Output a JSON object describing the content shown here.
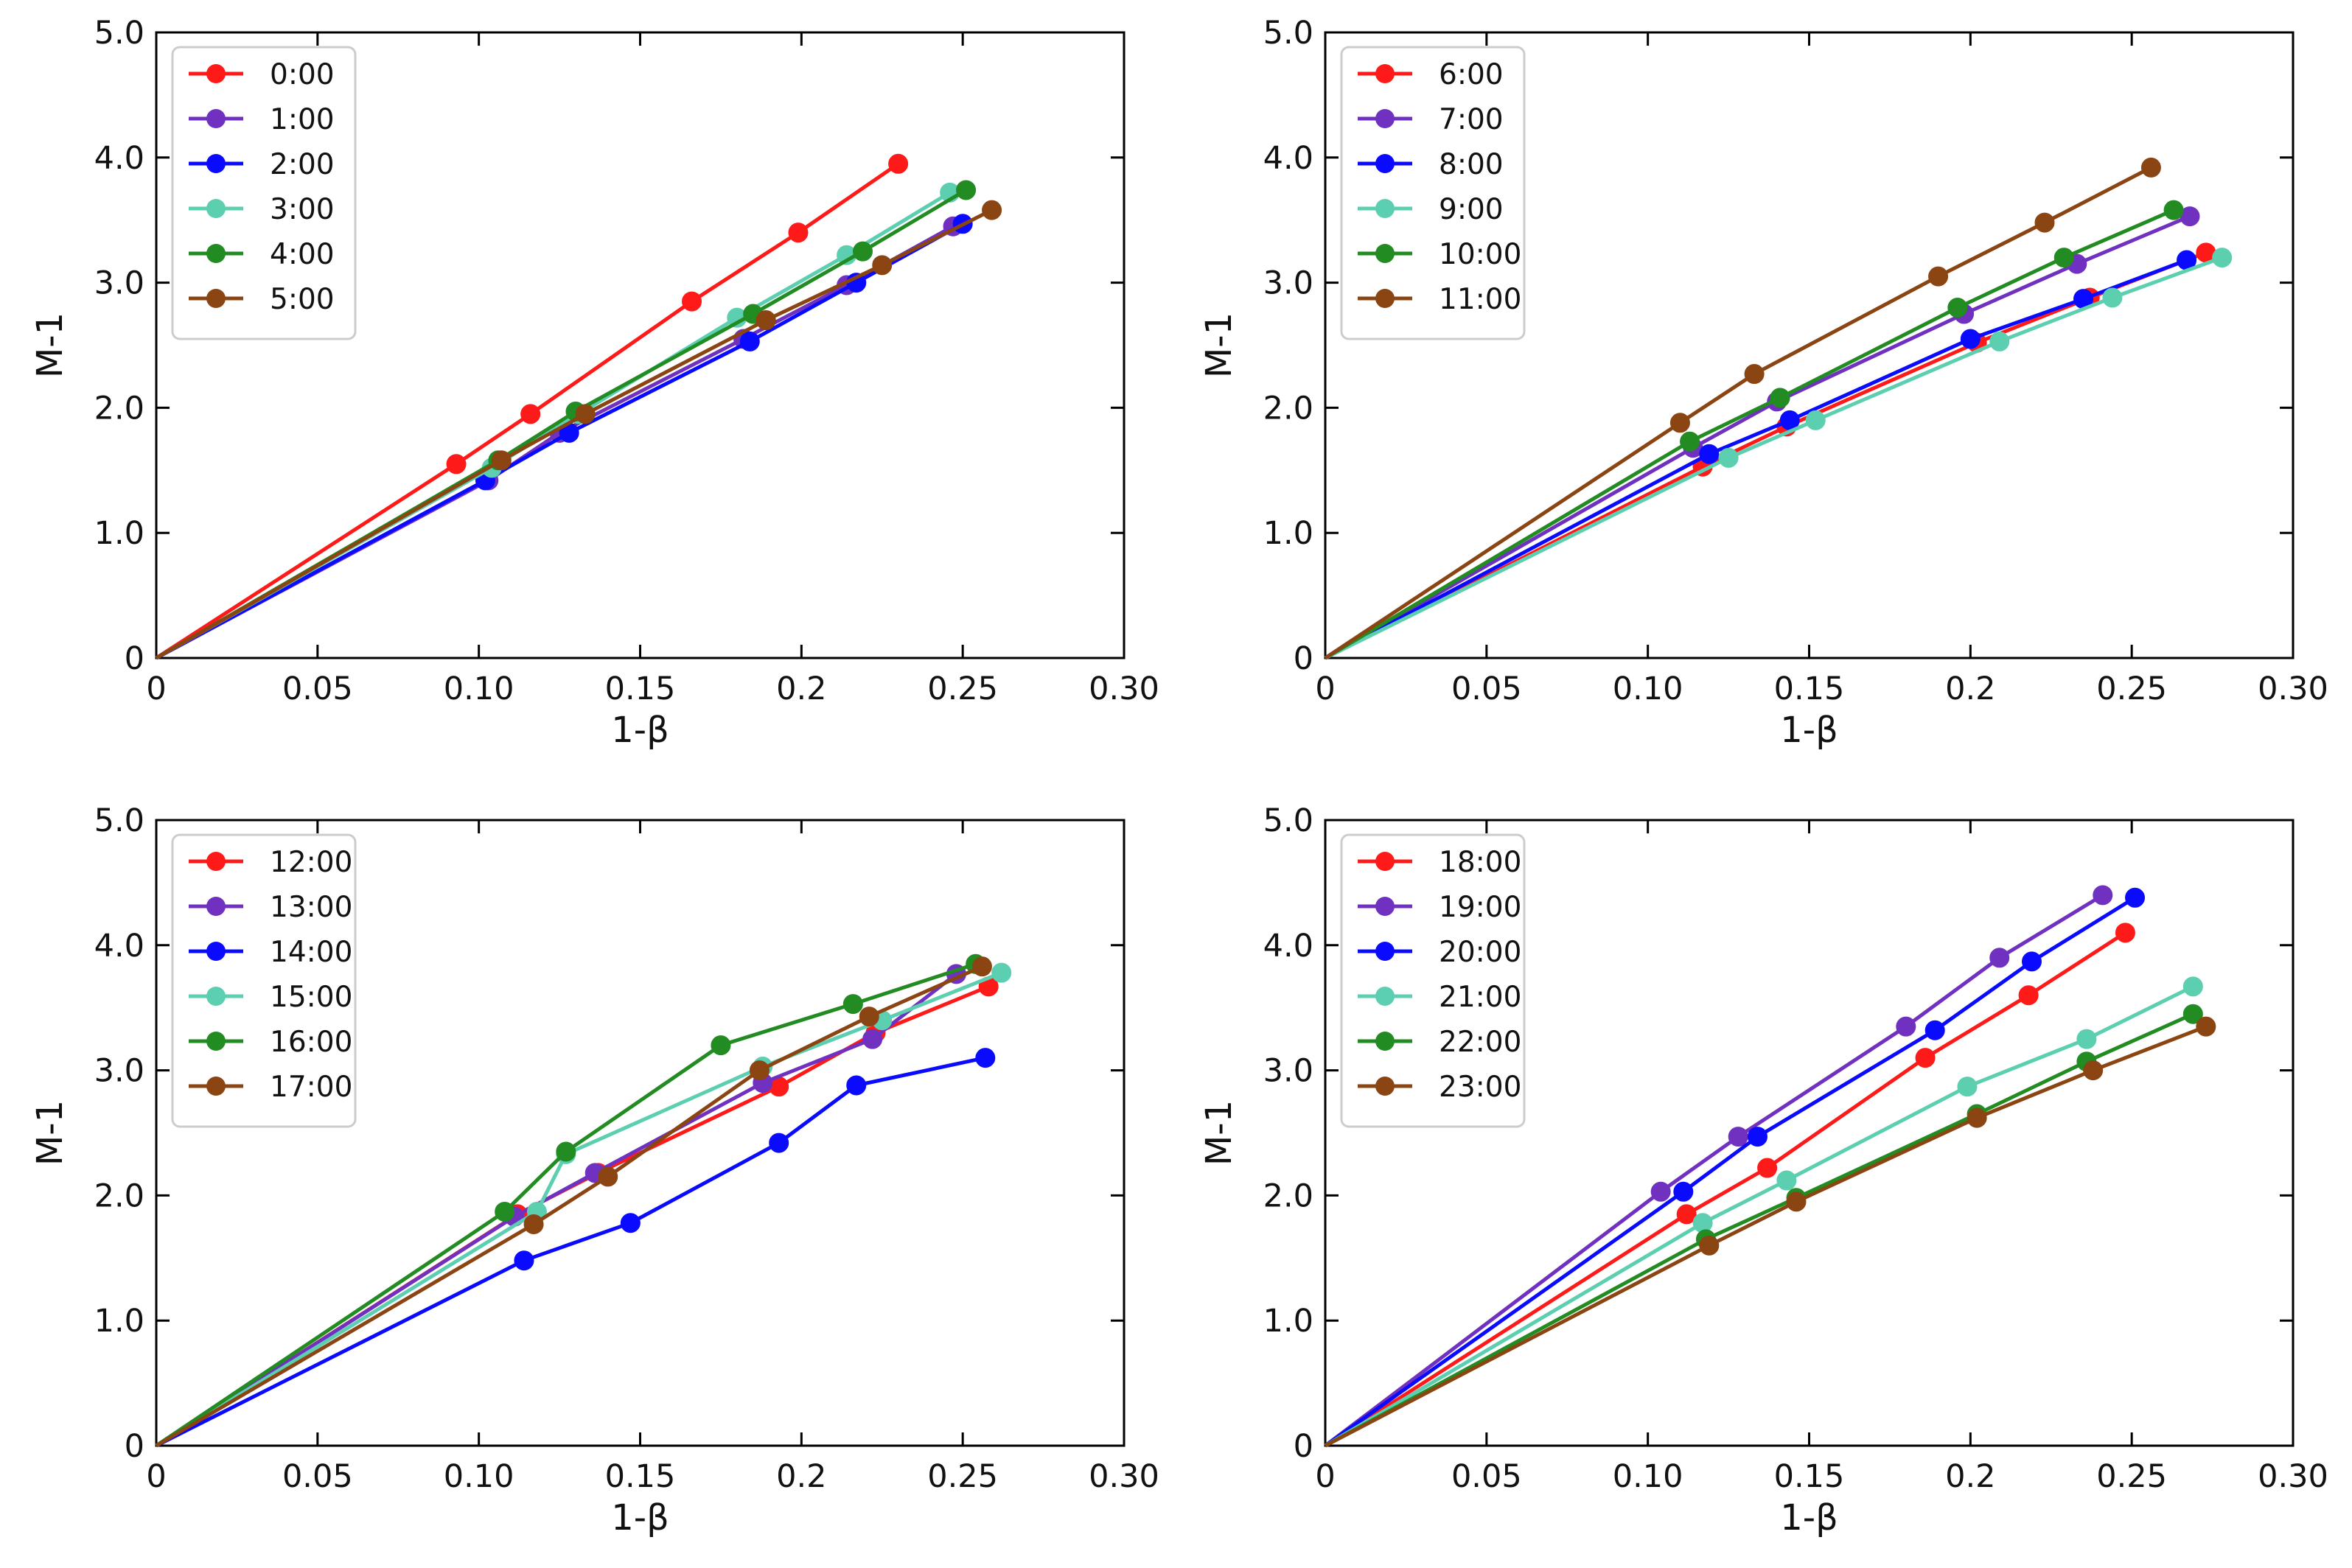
{
  "colors": [
    "#ff1a1a",
    "#7030c0",
    "#0a0aff",
    "#5ccfb0",
    "#228b22",
    "#8b4513"
  ],
  "chart_data": [
    {
      "type": "line",
      "title": "",
      "xlabel": "1-β",
      "ylabel": "M-1",
      "xlim": [
        0,
        0.3
      ],
      "ylim": [
        0,
        5.0
      ],
      "xticks": [
        0,
        0.05,
        0.1,
        0.15,
        0.2,
        0.25,
        0.3
      ],
      "xtick_labels": [
        "0",
        "0.05",
        "0.10",
        "0.15",
        "0.2",
        "0.25",
        "0.30"
      ],
      "yticks": [
        0,
        1.0,
        2.0,
        3.0,
        4.0,
        5.0
      ],
      "ytick_labels": [
        "0",
        "1.0",
        "2.0",
        "3.0",
        "4.0",
        "5.0"
      ],
      "legend_position": "top-left",
      "series": [
        {
          "name": "0:00",
          "x": [
            0,
            0.093,
            0.116,
            0.166,
            0.199,
            0.23
          ],
          "y": [
            0,
            1.55,
            1.95,
            2.85,
            3.4,
            3.95
          ]
        },
        {
          "name": "1:00",
          "x": [
            0,
            0.103,
            0.125,
            0.182,
            0.214,
            0.247
          ],
          "y": [
            0,
            1.42,
            1.8,
            2.55,
            2.98,
            3.45
          ]
        },
        {
          "name": "2:00",
          "x": [
            0,
            0.102,
            0.128,
            0.184,
            0.217,
            0.25
          ],
          "y": [
            0,
            1.42,
            1.8,
            2.53,
            3.0,
            3.47
          ]
        },
        {
          "name": "3:00",
          "x": [
            0,
            0.104,
            0.131,
            0.18,
            0.214,
            0.246
          ],
          "y": [
            0,
            1.52,
            1.95,
            2.72,
            3.22,
            3.72
          ]
        },
        {
          "name": "4:00",
          "x": [
            0,
            0.106,
            0.13,
            0.185,
            0.219,
            0.251
          ],
          "y": [
            0,
            1.58,
            1.97,
            2.75,
            3.25,
            3.74
          ]
        },
        {
          "name": "5:00",
          "x": [
            0,
            0.107,
            0.133,
            0.189,
            0.225,
            0.259
          ],
          "y": [
            0,
            1.58,
            1.95,
            2.7,
            3.14,
            3.58
          ]
        }
      ]
    },
    {
      "type": "line",
      "title": "",
      "xlabel": "1-β",
      "ylabel": "M-1",
      "xlim": [
        0,
        0.3
      ],
      "ylim": [
        0,
        5.0
      ],
      "xticks": [
        0,
        0.05,
        0.1,
        0.15,
        0.2,
        0.25,
        0.3
      ],
      "xtick_labels": [
        "0",
        "0.05",
        "0.10",
        "0.15",
        "0.2",
        "0.25",
        "0.30"
      ],
      "yticks": [
        0,
        1.0,
        2.0,
        3.0,
        4.0,
        5.0
      ],
      "ytick_labels": [
        "0",
        "1.0",
        "2.0",
        "3.0",
        "4.0",
        "5.0"
      ],
      "legend_position": "top-left",
      "series": [
        {
          "name": "6:00",
          "x": [
            0,
            0.117,
            0.143,
            0.202,
            0.237,
            0.273
          ],
          "y": [
            0,
            1.53,
            1.85,
            2.52,
            2.88,
            3.24
          ]
        },
        {
          "name": "7:00",
          "x": [
            0,
            0.114,
            0.14,
            0.198,
            0.233,
            0.268
          ],
          "y": [
            0,
            1.68,
            2.05,
            2.75,
            3.15,
            3.53
          ]
        },
        {
          "name": "8:00",
          "x": [
            0,
            0.119,
            0.144,
            0.2,
            0.235,
            0.267
          ],
          "y": [
            0,
            1.63,
            1.9,
            2.55,
            2.87,
            3.18
          ]
        },
        {
          "name": "9:00",
          "x": [
            0,
            0.125,
            0.152,
            0.209,
            0.244,
            0.278
          ],
          "y": [
            0,
            1.6,
            1.9,
            2.53,
            2.88,
            3.2
          ]
        },
        {
          "name": "10:00",
          "x": [
            0,
            0.113,
            0.141,
            0.196,
            0.229,
            0.263
          ],
          "y": [
            0,
            1.73,
            2.08,
            2.8,
            3.2,
            3.58
          ]
        },
        {
          "name": "11:00",
          "x": [
            0,
            0.11,
            0.133,
            0.19,
            0.223,
            0.256
          ],
          "y": [
            0,
            1.88,
            2.27,
            3.05,
            3.48,
            3.92
          ]
        }
      ]
    },
    {
      "type": "line",
      "title": "",
      "xlabel": "1-β",
      "ylabel": "M-1",
      "xlim": [
        0,
        0.3
      ],
      "ylim": [
        0,
        5.0
      ],
      "xticks": [
        0,
        0.05,
        0.1,
        0.15,
        0.2,
        0.25,
        0.3
      ],
      "xtick_labels": [
        "0",
        "0.05",
        "0.10",
        "0.15",
        "0.2",
        "0.25",
        "0.30"
      ],
      "yticks": [
        0,
        1.0,
        2.0,
        3.0,
        4.0,
        5.0
      ],
      "ytick_labels": [
        "0",
        "1.0",
        "2.0",
        "3.0",
        "4.0",
        "5.0"
      ],
      "legend_position": "top-left",
      "series": [
        {
          "name": "12:00",
          "x": [
            0,
            0.112,
            0.137,
            0.193,
            0.223,
            0.258
          ],
          "y": [
            0,
            1.85,
            2.18,
            2.87,
            3.3,
            3.67
          ]
        },
        {
          "name": "13:00",
          "x": [
            0,
            0.111,
            0.136,
            0.188,
            0.222,
            0.248
          ],
          "y": [
            0,
            1.83,
            2.18,
            2.9,
            3.25,
            3.77
          ]
        },
        {
          "name": "14:00",
          "x": [
            0,
            0.114,
            0.147,
            0.193,
            0.217,
            0.257
          ],
          "y": [
            0,
            1.48,
            1.78,
            2.42,
            2.88,
            3.1
          ]
        },
        {
          "name": "15:00",
          "x": [
            0,
            0.118,
            0.127,
            0.188,
            0.225,
            0.262
          ],
          "y": [
            0,
            1.87,
            2.33,
            3.03,
            3.4,
            3.78
          ]
        },
        {
          "name": "16:00",
          "x": [
            0,
            0.108,
            0.127,
            0.175,
            0.216,
            0.254
          ],
          "y": [
            0,
            1.87,
            2.35,
            3.2,
            3.53,
            3.85
          ]
        },
        {
          "name": "17:00",
          "x": [
            0,
            0.117,
            0.14,
            0.187,
            0.221,
            0.256
          ],
          "y": [
            0,
            1.77,
            2.15,
            3.0,
            3.43,
            3.83
          ]
        }
      ]
    },
    {
      "type": "line",
      "title": "",
      "xlabel": "1-β",
      "ylabel": "M-1",
      "xlim": [
        0,
        0.3
      ],
      "ylim": [
        0,
        5.0
      ],
      "xticks": [
        0,
        0.05,
        0.1,
        0.15,
        0.2,
        0.25,
        0.3
      ],
      "xtick_labels": [
        "0",
        "0.05",
        "0.10",
        "0.15",
        "0.2",
        "0.25",
        "0.30"
      ],
      "yticks": [
        0,
        1.0,
        2.0,
        3.0,
        4.0,
        5.0
      ],
      "ytick_labels": [
        "0",
        "1.0",
        "2.0",
        "3.0",
        "4.0",
        "5.0"
      ],
      "legend_position": "top-left",
      "series": [
        {
          "name": "18:00",
          "x": [
            0,
            0.112,
            0.137,
            0.186,
            0.218,
            0.248
          ],
          "y": [
            0,
            1.85,
            2.22,
            3.1,
            3.6,
            4.1
          ]
        },
        {
          "name": "19:00",
          "x": [
            0,
            0.104,
            0.128,
            0.18,
            0.209,
            0.241
          ],
          "y": [
            0,
            2.03,
            2.47,
            3.35,
            3.9,
            4.4
          ]
        },
        {
          "name": "20:00",
          "x": [
            0,
            0.111,
            0.134,
            0.189,
            0.219,
            0.251
          ],
          "y": [
            0,
            2.03,
            2.47,
            3.32,
            3.87,
            4.38
          ]
        },
        {
          "name": "21:00",
          "x": [
            0,
            0.117,
            0.143,
            0.199,
            0.236,
            0.269
          ],
          "y": [
            0,
            1.78,
            2.12,
            2.87,
            3.25,
            3.67
          ]
        },
        {
          "name": "22:00",
          "x": [
            0,
            0.118,
            0.146,
            0.202,
            0.236,
            0.269
          ],
          "y": [
            0,
            1.65,
            1.98,
            2.65,
            3.07,
            3.45
          ]
        },
        {
          "name": "23:00",
          "x": [
            0,
            0.119,
            0.146,
            0.202,
            0.238,
            0.273
          ],
          "y": [
            0,
            1.6,
            1.95,
            2.62,
            3.0,
            3.35
          ]
        }
      ]
    }
  ]
}
